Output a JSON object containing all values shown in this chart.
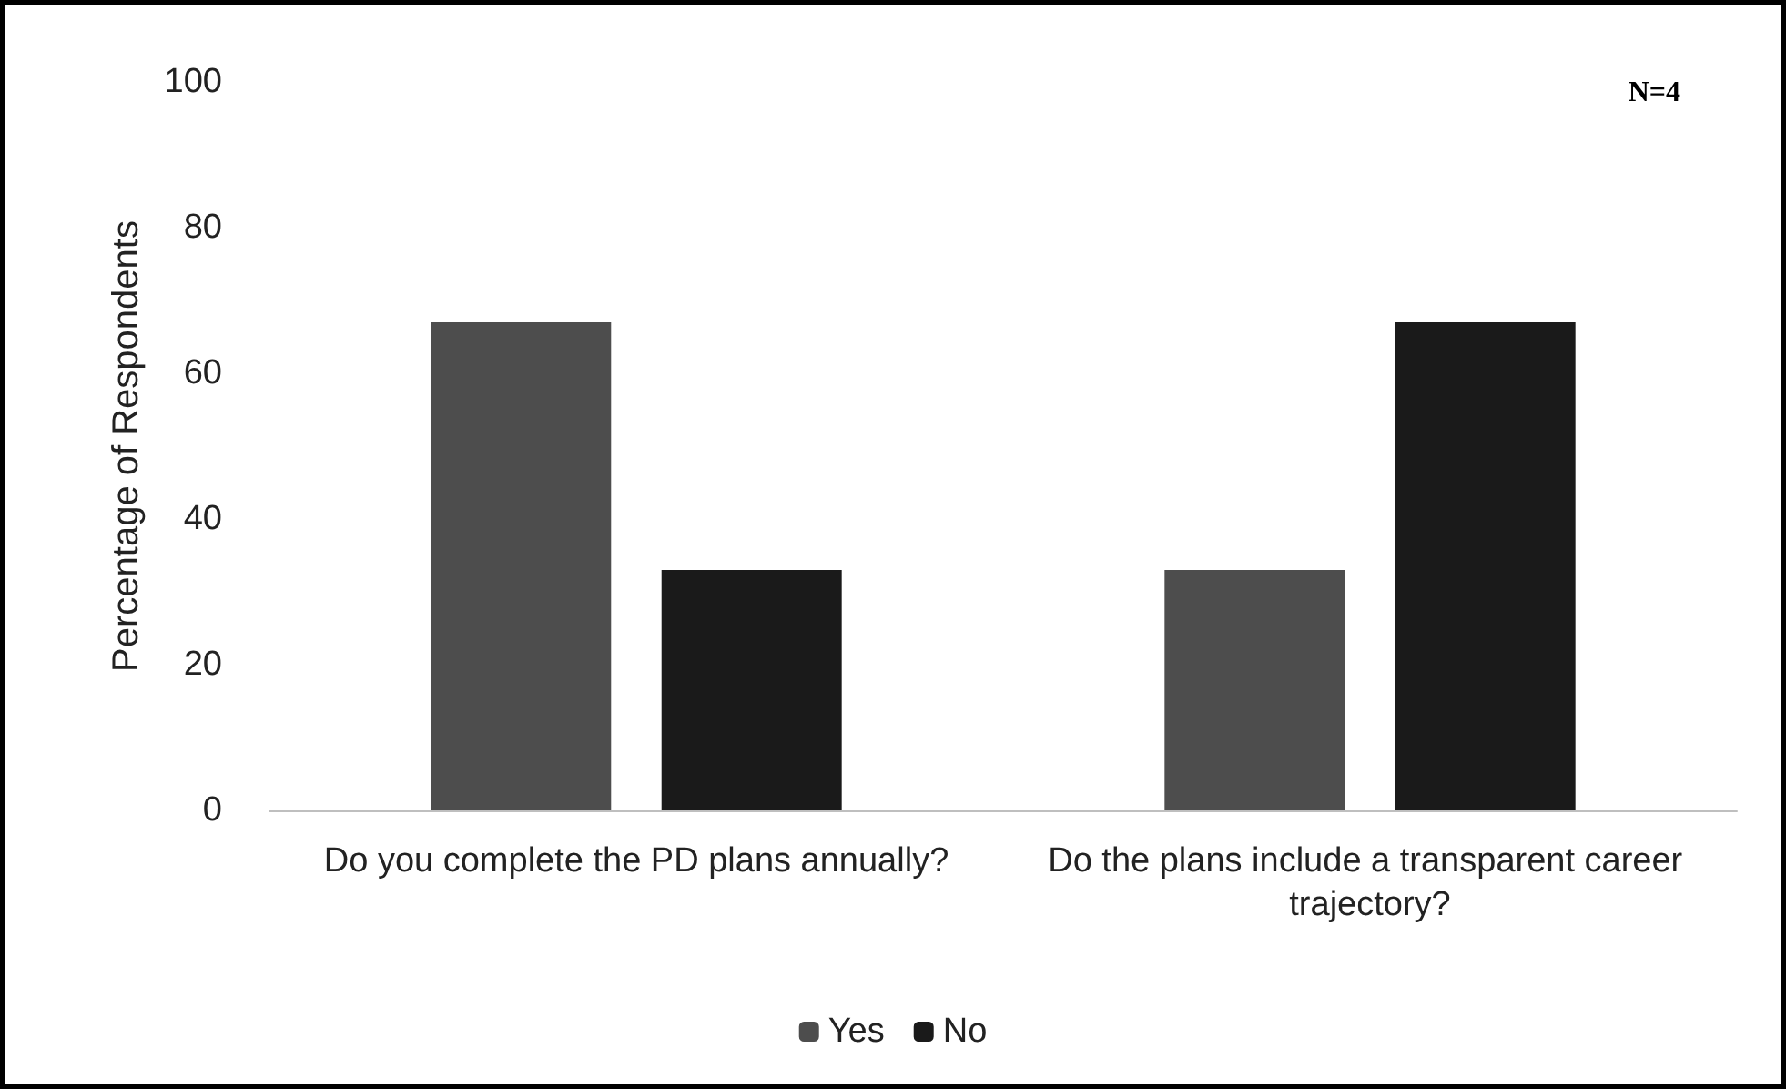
{
  "chart_data": {
    "type": "bar",
    "ylabel": "Percentage of Respondents",
    "categories": [
      "Do you complete the PD plans annually?",
      "Do the plans include a transparent career trajectory?"
    ],
    "series": [
      {
        "name": "Yes",
        "color": "#4d4d4d",
        "values": [
          67,
          33
        ]
      },
      {
        "name": "No",
        "color": "#1a1a1a",
        "values": [
          33,
          67
        ]
      }
    ],
    "ylim": [
      0,
      100
    ],
    "yticks": [
      0,
      20,
      40,
      60,
      80,
      100
    ],
    "grid": false,
    "legend": "bottom",
    "annotations": [
      "N=4"
    ]
  }
}
